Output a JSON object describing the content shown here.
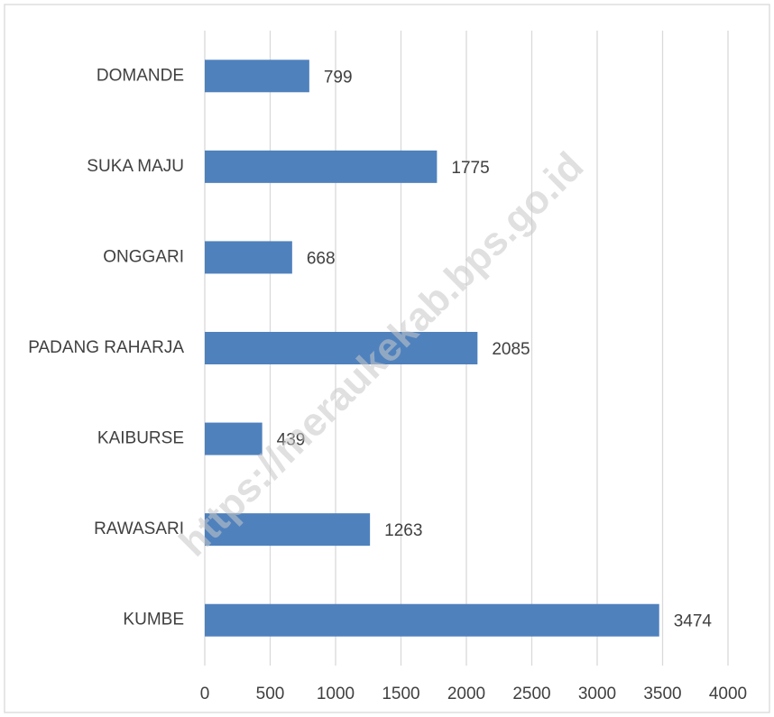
{
  "chart_data": {
    "type": "bar",
    "orientation": "horizontal",
    "categories": [
      "DOMANDE",
      "SUKA MAJU",
      "ONGGARI",
      "PADANG RAHARJA",
      "KAIBURSE",
      "RAWASARI",
      "KUMBE"
    ],
    "values": [
      799,
      1775,
      668,
      2085,
      439,
      1263,
      3474
    ],
    "color": "#4f81bd",
    "xlim": [
      0,
      4000
    ],
    "xticks": [
      0,
      500,
      1000,
      1500,
      2000,
      2500,
      3000,
      3500,
      4000
    ],
    "grid": true,
    "data_labels": true,
    "watermark": "https://meraukekab.bps.go.id"
  }
}
